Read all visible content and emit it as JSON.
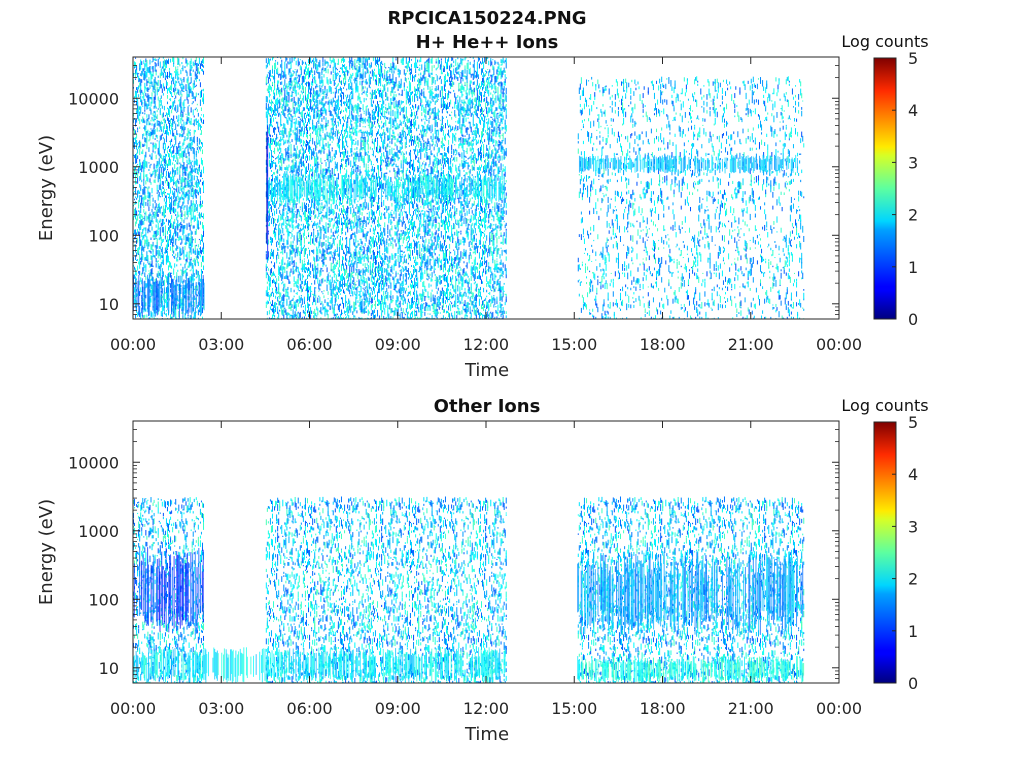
{
  "figure": {
    "title_line1": "RPCICA150224.PNG"
  },
  "colors": {
    "axis": "#262626",
    "colormap": "jet"
  },
  "chart_data": [
    {
      "type": "heatmap",
      "title": "H+ He++ Ions",
      "xlabel": "Time",
      "ylabel": "Energy (eV)",
      "x_ticks": [
        "00:00",
        "03:00",
        "06:00",
        "09:00",
        "12:00",
        "15:00",
        "18:00",
        "21:00",
        "00:00"
      ],
      "xlim_hours": [
        0,
        24
      ],
      "y_ticks": [
        "10",
        "100",
        "1000",
        "10000"
      ],
      "y_scale": "log",
      "ylim": [
        6,
        40000
      ],
      "colorbar": {
        "label": "Log counts",
        "ticks": [
          "0",
          "1",
          "2",
          "3",
          "4",
          "5"
        ],
        "range": [
          0,
          5
        ]
      },
      "data_intervals_hours": [
        [
          0,
          2.4
        ],
        [
          4.5,
          12.7
        ],
        [
          15.1,
          22.8
        ]
      ],
      "notable_features": [
        {
          "t_start": 0,
          "t_end": 2.4,
          "e_low": 6,
          "e_high": 28,
          "log_counts": 1.2
        },
        {
          "t_start": 4.5,
          "t_end": 12.6,
          "e_low": 300,
          "e_high": 800,
          "log_counts": 1.8
        },
        {
          "t_start": 15.1,
          "t_end": 22.6,
          "e_low": 800,
          "e_high": 1500,
          "log_counts": 1.6
        },
        {
          "t_start": 4.5,
          "t_end": 4.6,
          "e_low": 6,
          "e_high": 40000,
          "log_counts": 0.4
        }
      ]
    },
    {
      "type": "heatmap",
      "title": "Other Ions",
      "xlabel": "Time",
      "ylabel": "Energy (eV)",
      "x_ticks": [
        "00:00",
        "03:00",
        "06:00",
        "09:00",
        "12:00",
        "15:00",
        "18:00",
        "21:00",
        "00:00"
      ],
      "xlim_hours": [
        0,
        24
      ],
      "y_ticks": [
        "10",
        "100",
        "1000",
        "10000"
      ],
      "y_scale": "log",
      "ylim": [
        6,
        40000
      ],
      "colorbar": {
        "label": "Log counts",
        "ticks": [
          "0",
          "1",
          "2",
          "3",
          "4",
          "5"
        ],
        "range": [
          0,
          5
        ]
      },
      "data_intervals_hours": [
        [
          0,
          2.4
        ],
        [
          4.5,
          12.7
        ],
        [
          15.1,
          22.8
        ]
      ],
      "notable_features": [
        {
          "t_start": 0,
          "t_end": 12.7,
          "e_low": 6,
          "e_high": 20,
          "log_counts": 1.8
        },
        {
          "t_start": 15.1,
          "t_end": 22.8,
          "e_low": 6,
          "e_high": 15,
          "log_counts": 2.0
        },
        {
          "t_start": 15.1,
          "t_end": 22.8,
          "e_low": 30,
          "e_high": 500,
          "log_counts": 1.4
        },
        {
          "t_start": 0,
          "t_end": 2.4,
          "e_low": 30,
          "e_high": 600,
          "log_counts": 0.9
        }
      ]
    }
  ]
}
